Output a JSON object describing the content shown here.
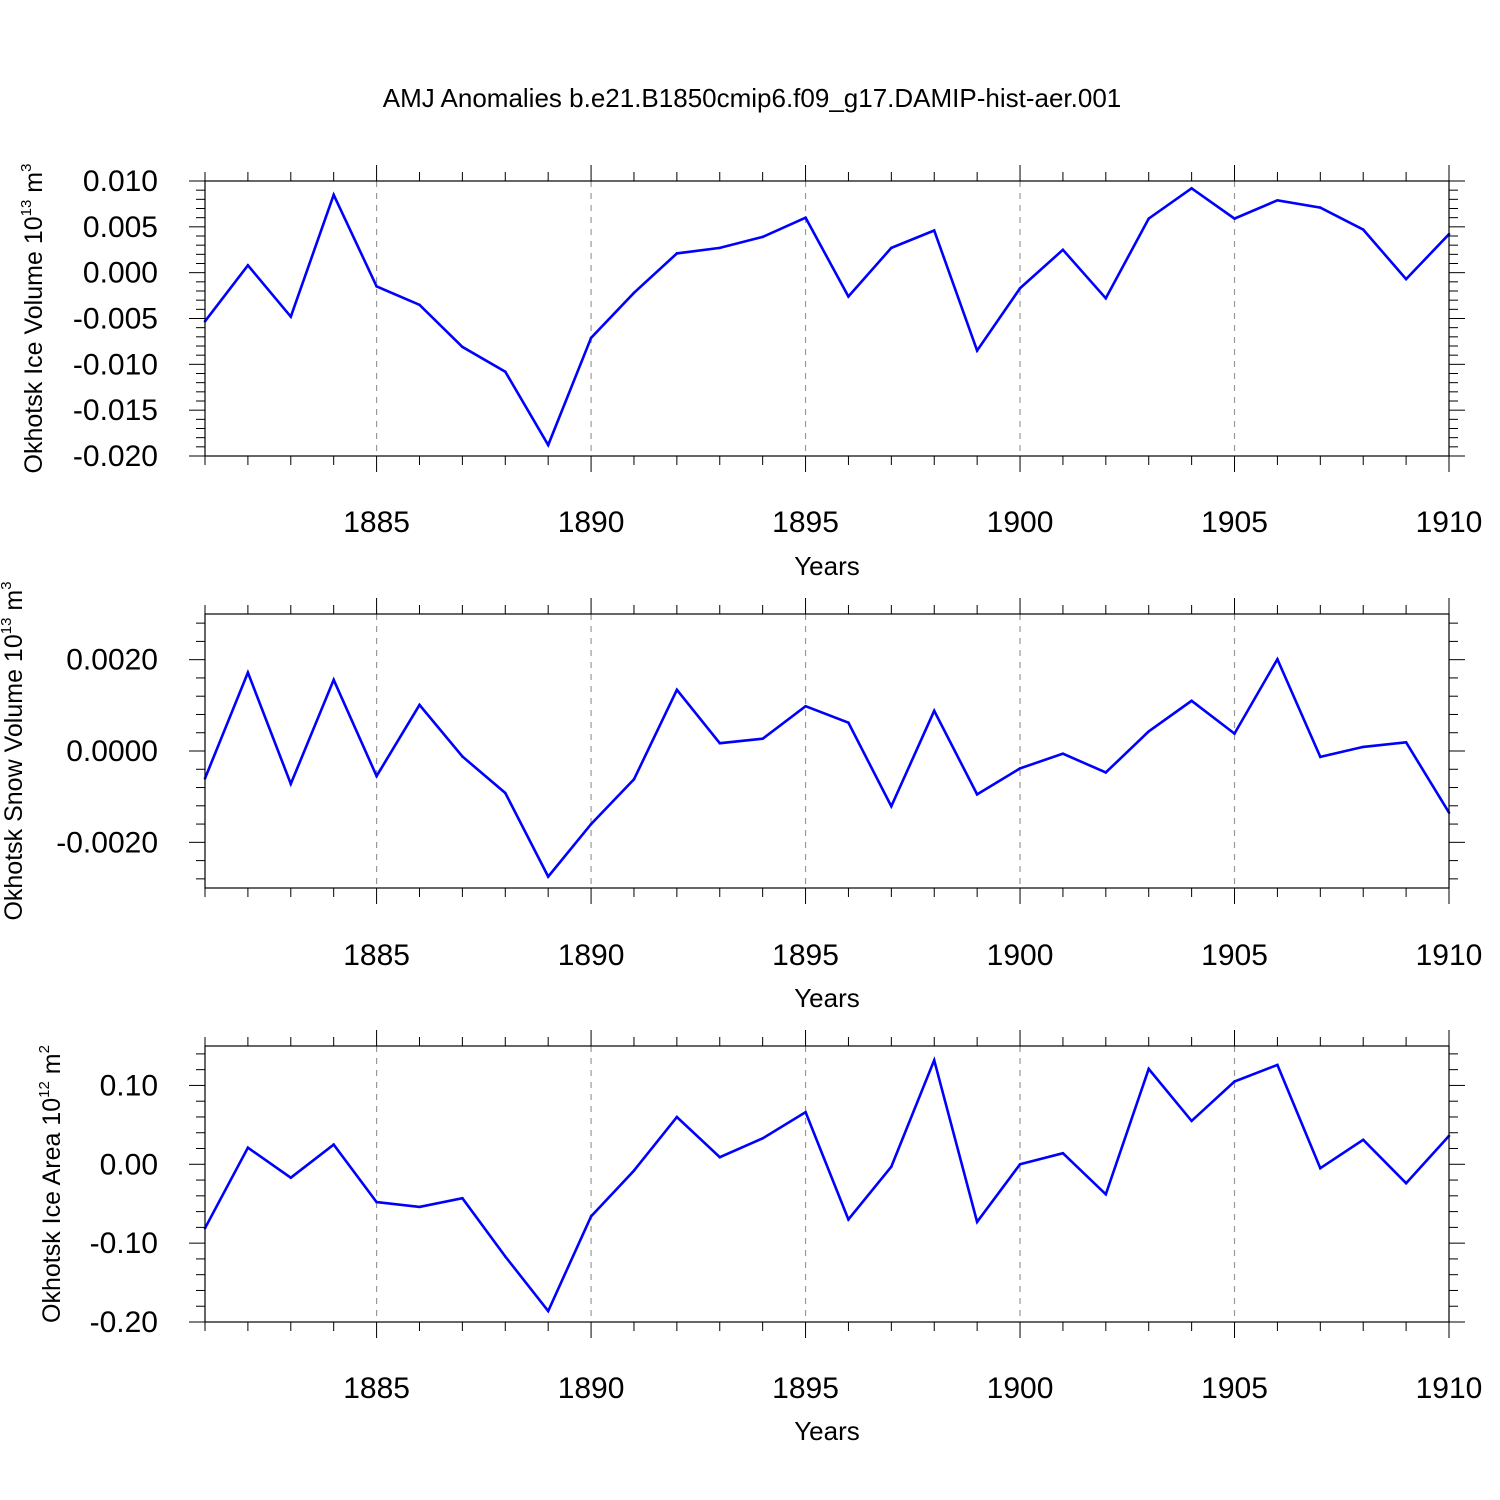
{
  "chart_data": {
    "title": "AMJ Anomalies b.e21.B1850cmip6.f09_g17.DAMIP-hist-aer.001",
    "line_color": "#0000ff",
    "x": [
      1881,
      1882,
      1883,
      1884,
      1885,
      1886,
      1887,
      1888,
      1889,
      1890,
      1891,
      1892,
      1893,
      1894,
      1895,
      1896,
      1897,
      1898,
      1899,
      1900,
      1901,
      1902,
      1903,
      1904,
      1905,
      1906,
      1907,
      1908,
      1909,
      1910
    ],
    "xlim": [
      1881,
      1910
    ],
    "xticks": [
      "1885",
      "1890",
      "1895",
      "1900",
      "1905",
      "1910"
    ],
    "panels": [
      {
        "type": "line",
        "xlabel": "Years",
        "ylabel": "Okhotsk Ice Volume 10",
        "ylabel_exponent": "13",
        "ylabel_unit": " m",
        "ylabel_unit_exponent": "3",
        "ylim": [
          -0.02,
          0.01
        ],
        "ytick_values": [
          0.01,
          0.005,
          0.0,
          -0.005,
          -0.01,
          -0.015,
          -0.02
        ],
        "yticks": [
          "0.010",
          "0.005",
          "0.000",
          "-0.005",
          "-0.010",
          "-0.015",
          "-0.020"
        ],
        "values": [
          -0.0053,
          0.0008,
          -0.0048,
          0.0085,
          -0.0015,
          -0.0035,
          -0.0081,
          -0.0108,
          -0.0188,
          -0.0071,
          -0.0022,
          0.0021,
          0.0027,
          0.0039,
          0.006,
          -0.0026,
          0.0027,
          0.0046,
          -0.0085,
          -0.0017,
          0.0025,
          -0.0028,
          0.0059,
          0.0092,
          0.0059,
          0.0079,
          0.0071,
          0.0047,
          -0.0007,
          0.0042
        ]
      },
      {
        "type": "line",
        "xlabel": "Years",
        "ylabel": "Okhotsk Snow Volume 10",
        "ylabel_exponent": "13",
        "ylabel_unit": " m",
        "ylabel_unit_exponent": "3",
        "ylim": [
          -0.003,
          0.003
        ],
        "ytick_values": [
          0.002,
          0.0,
          -0.002
        ],
        "yticks": [
          "0.0020",
          "0.0000",
          "-0.0020"
        ],
        "values": [
          -0.0006,
          0.00172,
          -0.00072,
          0.00156,
          -0.00055,
          0.00101,
          -0.00012,
          -0.00092,
          -0.00275,
          -0.0016,
          -0.00062,
          0.00134,
          0.00017,
          0.00027,
          0.00098,
          0.00062,
          -0.00121,
          0.00088,
          -0.00095,
          -0.00038,
          -6e-05,
          -0.00047,
          0.00043,
          0.0011,
          0.00038,
          0.00201,
          -0.00013,
          9e-05,
          0.00019,
          -0.00135
        ]
      },
      {
        "type": "line",
        "xlabel": "Years",
        "ylabel": "Okhotsk Ice Area 10",
        "ylabel_exponent": "12",
        "ylabel_unit": " m",
        "ylabel_unit_exponent": "2",
        "ylim": [
          -0.2,
          0.15
        ],
        "ytick_values": [
          0.1,
          0.0,
          -0.1,
          -0.2
        ],
        "yticks": [
          "0.10",
          "0.00",
          "-0.10",
          "-0.20"
        ],
        "values": [
          -0.081,
          0.021,
          -0.017,
          0.025,
          -0.048,
          -0.054,
          -0.043,
          -0.117,
          -0.186,
          -0.066,
          -0.008,
          0.06,
          0.009,
          0.033,
          0.066,
          -0.07,
          -0.003,
          0.132,
          -0.073,
          0.0,
          0.014,
          -0.038,
          0.121,
          0.055,
          0.105,
          0.126,
          -0.005,
          0.031,
          -0.024,
          0.036
        ]
      }
    ]
  }
}
